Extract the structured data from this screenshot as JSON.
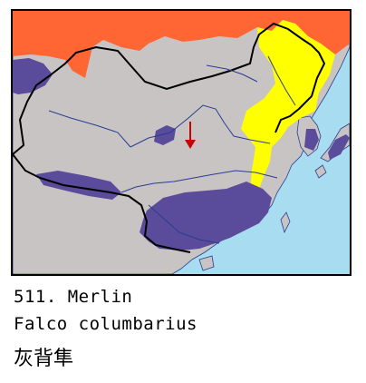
{
  "species": {
    "number_label": "511. Merlin",
    "latin_name": "Falco columbarius",
    "chinese_name": "灰背隼"
  },
  "legend_colors": {
    "breeding": "#ff6633",
    "resident": "#5a4b9b",
    "winter": "#ffff00",
    "land": "#c9c4c4",
    "sea": "#a8dcf0",
    "vagrant_marker": "#cc0000"
  }
}
